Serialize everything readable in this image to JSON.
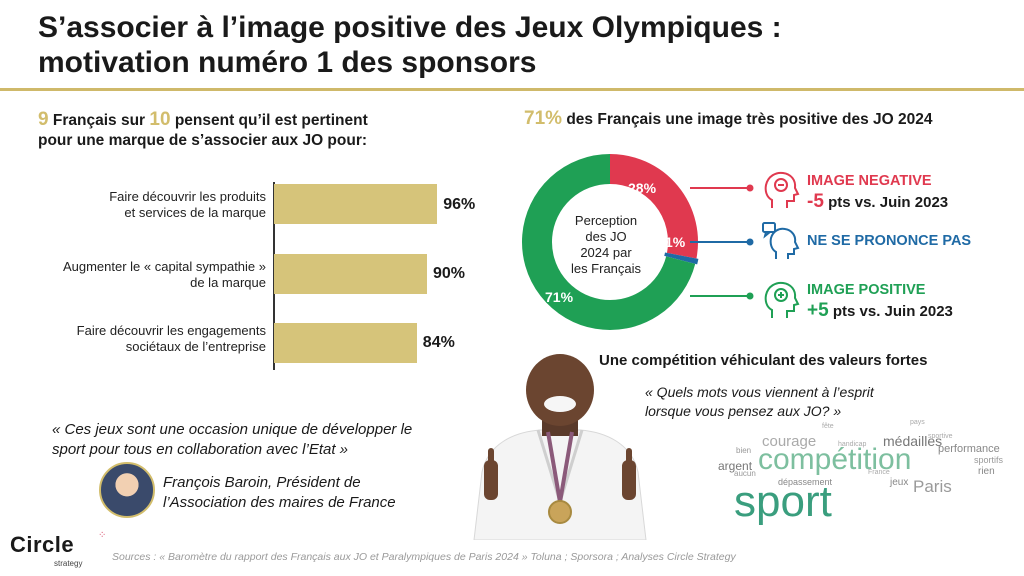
{
  "title": {
    "line1": "S’associer à l’image positive des Jeux Olympiques :",
    "line2": "motivation numéro 1 des sponsors"
  },
  "left": {
    "headline": {
      "num1": "9",
      "text1": " Français sur ",
      "num2": "10",
      "text2": " pensent qu’il est pertinent",
      "line2": "pour une marque de s’associer aux JO pour:"
    },
    "bars": [
      {
        "label_l1": "Faire découvrir les produits",
        "label_l2": "et services de la marque",
        "value": 96,
        "value_label": "96%"
      },
      {
        "label_l1": "Augmenter le « capital sympathie »",
        "label_l2": "de la marque",
        "value": 90,
        "value_label": "90%"
      },
      {
        "label_l1": "Faire découvrir les engagements",
        "label_l2": "sociétaux de l’entreprise",
        "value": 84,
        "value_label": "84%"
      }
    ],
    "quote_l1": "« Ces jeux sont une occasion unique de développer le",
    "quote_l2": "sport pour tous en collaboration avec l’Etat »",
    "author_l1": "François Baroin, Président de",
    "author_l2": "l’Association des maires de France"
  },
  "right": {
    "headline_pct": "71%",
    "headline_text": " des Français une image très positive des JO 2024",
    "donut": {
      "center_l1": "Perception",
      "center_l2": "des JO",
      "center_l3": "2024 par",
      "center_l4": "les Français",
      "segments": [
        {
          "name": "negative",
          "value": 28,
          "label": "28%",
          "color": "#e0394f"
        },
        {
          "name": "neutral",
          "value": 1,
          "label": "1%",
          "color": "#1f6aa5"
        },
        {
          "name": "positive",
          "value": 71,
          "label": "71%",
          "color": "#1fa055"
        }
      ]
    },
    "categories": {
      "negative": {
        "title": "IMAGE NEGATIVE",
        "delta": "-5",
        "delta_rest": " pts vs. Juin 2023",
        "color": "#e0394f"
      },
      "neutral": {
        "title": "NE SE PRONONCE PAS",
        "color": "#1f6aa5"
      },
      "positive": {
        "title": "IMAGE POSITIVE",
        "delta": "+5",
        "delta_rest": " pts vs. Juin 2023",
        "color": "#1fa055"
      }
    },
    "values_title": "Une compétition véhiculant des valeurs fortes",
    "values_q_l1": "« Quels mots vous viennent à l’esprit",
    "values_q_l2": "lorsque vous pensez aux JO? »",
    "wordcloud": [
      "sport",
      "compétition",
      "Paris",
      "médailles",
      "courage",
      "performance",
      "argent",
      "dépassement",
      "jeux",
      "sportifs",
      "rien",
      "bien",
      "aucun",
      "pays",
      "fête",
      "handicap",
      "sportive",
      "France"
    ]
  },
  "footer": {
    "logo_main": "Circle",
    "logo_sub": "strategy",
    "sources": "Sources : « Baromètre du rapport des Français aux JO et Paralympiques de Paris 2024 » Toluna ; Sporsora ; Analyses Circle Strategy"
  },
  "colors": {
    "gold": "#d2bd6c",
    "bar": "#d6c47a",
    "red": "#e0394f",
    "blue": "#1f6aa5",
    "green": "#1fa055",
    "cloud_green": "#3a9e7e"
  },
  "icons": [
    "head-minus-icon",
    "head-speech-icon",
    "head-plus-icon"
  ]
}
